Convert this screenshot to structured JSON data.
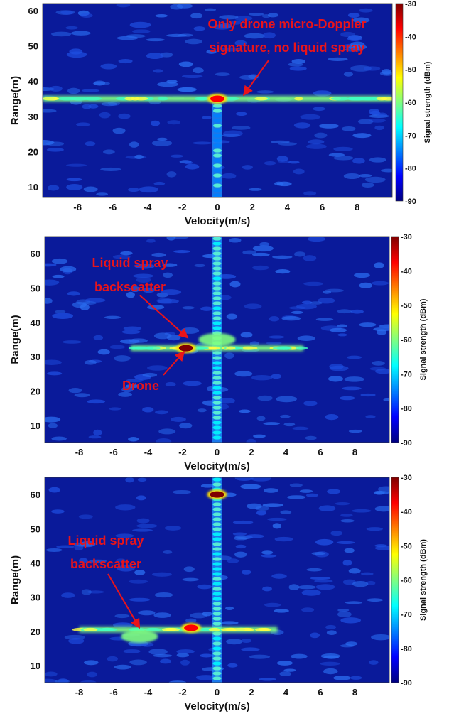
{
  "colors": {
    "annotation": "#e8141b",
    "background_field": "#0a1a9a",
    "colormap": [
      "#00007f",
      "#0000ff",
      "#0080ff",
      "#00ffff",
      "#80ff80",
      "#ffff00",
      "#ff8000",
      "#ff0000",
      "#7f0000"
    ]
  },
  "chart_data": [
    {
      "type": "heatmap",
      "title": "",
      "xlabel": "Velocity(m/s)",
      "ylabel": "Range(m)",
      "xlim": [
        -10,
        10
      ],
      "ylim": [
        7,
        62
      ],
      "xticks": [
        -8,
        -6,
        -4,
        -2,
        0,
        2,
        4,
        6,
        8
      ],
      "yticks": [
        10,
        20,
        30,
        40,
        50,
        60
      ],
      "colorbar": {
        "label": "Signal strength (dBm)",
        "range": [
          -90,
          -30
        ],
        "ticks": [
          -30,
          -40,
          -50,
          -60,
          -70,
          -80,
          -90
        ]
      },
      "features": [
        {
          "kind": "horizontal_band",
          "range": 35,
          "velocity_from": -10,
          "velocity_to": 10,
          "level": -60
        },
        {
          "kind": "vertical_band",
          "velocity": 0,
          "range_from": 7,
          "range_to": 35,
          "level": -72
        },
        {
          "kind": "peak",
          "velocity": 0,
          "range": 35,
          "level": -35
        }
      ],
      "annotations": [
        {
          "lines": [
            "Only drone micro-Doppler",
            "signature, no liquid spray"
          ],
          "arrow_to": [
            1.5,
            36
          ]
        }
      ]
    },
    {
      "type": "heatmap",
      "title": "",
      "xlabel": "Velocity(m/s)",
      "ylabel": "Range(m)",
      "xlim": [
        -10,
        10
      ],
      "ylim": [
        5,
        65
      ],
      "xticks": [
        -8,
        -6,
        -4,
        -2,
        0,
        2,
        4,
        6,
        8
      ],
      "yticks": [
        10,
        20,
        30,
        40,
        50,
        60
      ],
      "colorbar": {
        "label": "Signal strength (dBm)",
        "range": [
          -90,
          -30
        ],
        "ticks": [
          -30,
          -40,
          -50,
          -60,
          -70,
          -80,
          -90
        ]
      },
      "features": [
        {
          "kind": "vertical_band",
          "velocity": 0,
          "range_from": 5,
          "range_to": 65,
          "level": -65
        },
        {
          "kind": "horizontal_band",
          "range": 32.5,
          "velocity_from": -5,
          "velocity_to": 5,
          "level": -58
        },
        {
          "kind": "blob",
          "velocity": 0,
          "range": 35,
          "level": -60
        },
        {
          "kind": "peak",
          "velocity": -1.8,
          "range": 32.5,
          "level": -33
        }
      ],
      "annotations": [
        {
          "lines": [
            "Liquid spray",
            "backscatter"
          ],
          "arrow_to": [
            -1.7,
            35.5
          ]
        },
        {
          "lines": [
            "Drone"
          ],
          "arrow_to": [
            -1.9,
            31.5
          ]
        }
      ]
    },
    {
      "type": "heatmap",
      "title": "",
      "xlabel": "Velocity(m/s)",
      "ylabel": "Range(m)",
      "xlim": [
        -10,
        10
      ],
      "ylim": [
        5,
        65
      ],
      "xticks": [
        -8,
        -6,
        -4,
        -2,
        0,
        2,
        4,
        6,
        8
      ],
      "yticks": [
        10,
        20,
        30,
        40,
        50,
        60
      ],
      "colorbar": {
        "label": "Signal strength (dBm)",
        "range": [
          -90,
          -30
        ],
        "ticks": [
          -30,
          -40,
          -50,
          -60,
          -70,
          -80,
          -90
        ]
      },
      "features": [
        {
          "kind": "vertical_band",
          "velocity": 0,
          "range_from": 5,
          "range_to": 65,
          "level": -66
        },
        {
          "kind": "peak",
          "velocity": 0,
          "range": 60,
          "level": -32
        },
        {
          "kind": "horizontal_band",
          "range": 20.5,
          "velocity_from": -8,
          "velocity_to": 3.5,
          "level": -60
        },
        {
          "kind": "peak",
          "velocity": -1.5,
          "range": 21,
          "level": -36
        },
        {
          "kind": "blob",
          "velocity": -4.5,
          "range": 18.5,
          "level": -58
        }
      ],
      "annotations": [
        {
          "lines": [
            "Liquid spray",
            "backscatter"
          ],
          "arrow_to": [
            -4.5,
            21
          ]
        }
      ]
    }
  ]
}
